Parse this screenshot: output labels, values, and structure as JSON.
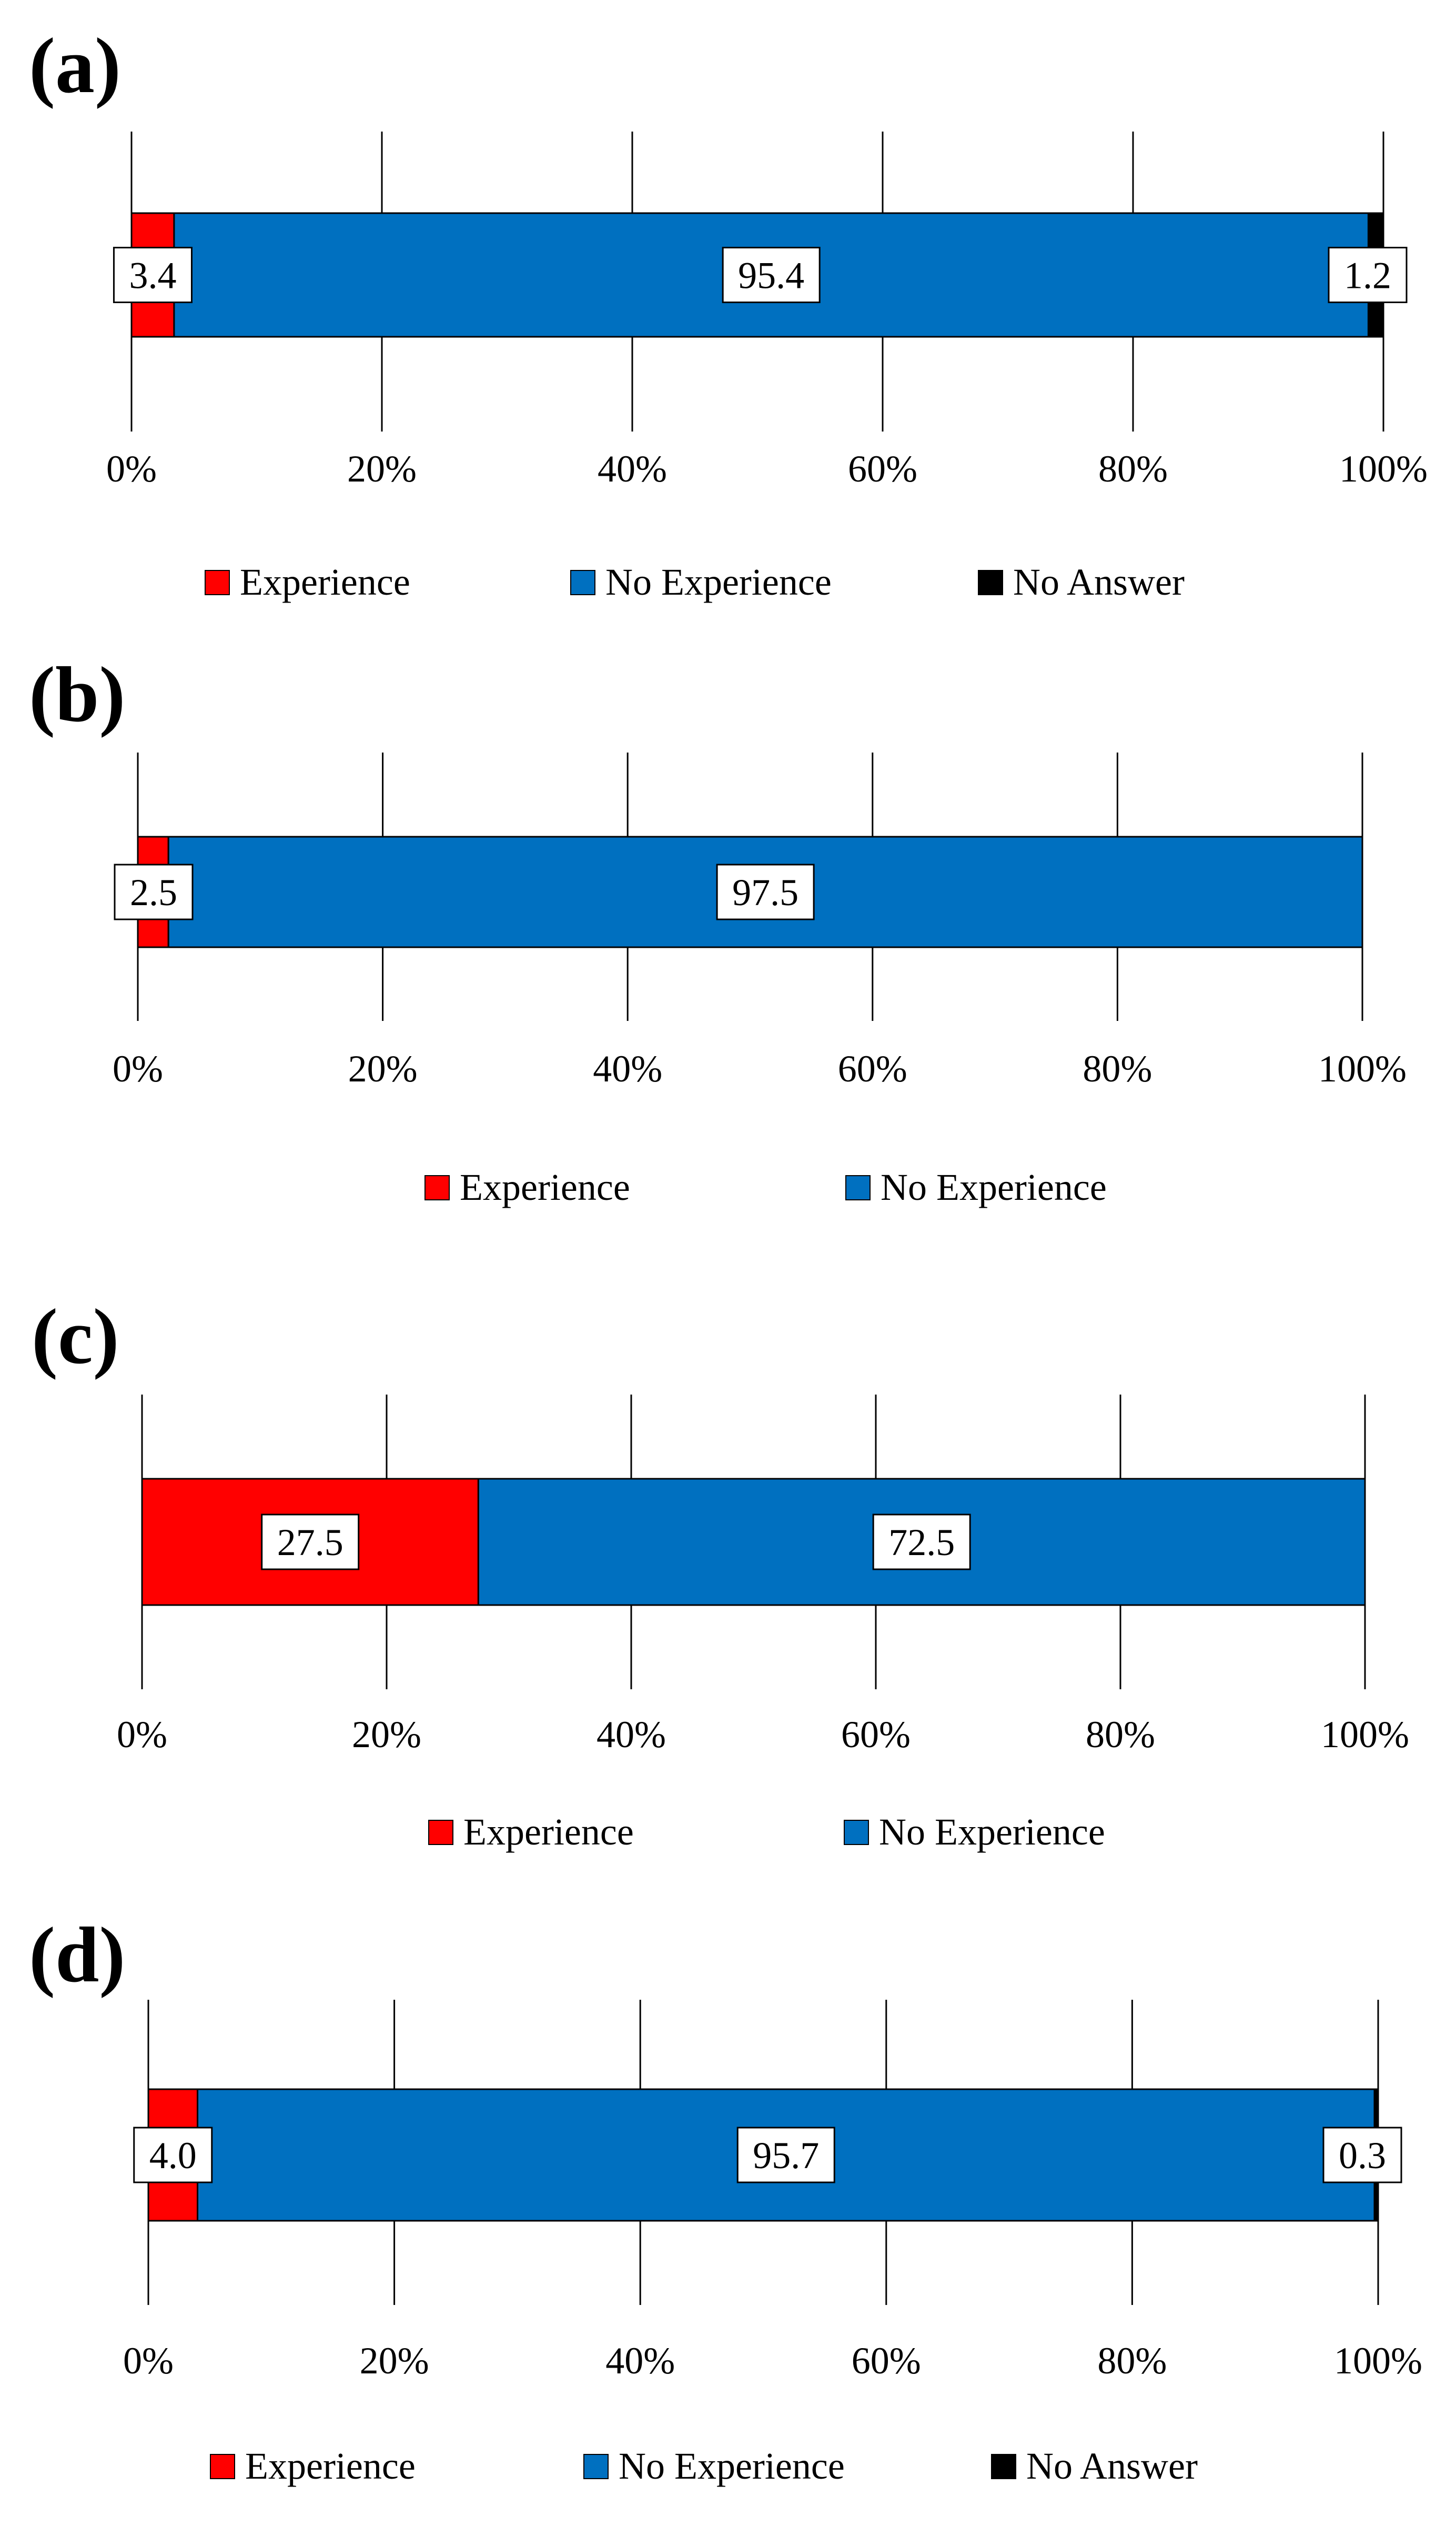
{
  "colors": {
    "Experience": "#ff0000",
    "No Experience": "#0070c0",
    "No Answer": "#000000",
    "gridline": "#000000",
    "label_box_fill": "#ffffff"
  },
  "chart_data": [
    {
      "type": "bar",
      "orientation": "horizontal",
      "stacked": "100%",
      "panel_label": "(a)",
      "series": [
        {
          "name": "Experience",
          "values": [
            3.4
          ]
        },
        {
          "name": "No Experience",
          "values": [
            95.4
          ]
        },
        {
          "name": "No Answer",
          "values": [
            1.2
          ]
        }
      ],
      "data_labels": [
        "3.4",
        "95.4",
        "1.2"
      ],
      "xlim": [
        0,
        100
      ],
      "x_ticks": [
        "0%",
        "20%",
        "40%",
        "60%",
        "80%",
        "100%"
      ],
      "grid": "vertical",
      "legend": [
        "Experience",
        "No Experience",
        "No Answer"
      ],
      "legend_position": "bottom"
    },
    {
      "type": "bar",
      "orientation": "horizontal",
      "stacked": "100%",
      "panel_label": "(b)",
      "series": [
        {
          "name": "Experience",
          "values": [
            2.5
          ]
        },
        {
          "name": "No Experience",
          "values": [
            97.5
          ]
        }
      ],
      "data_labels": [
        "2.5",
        "97.5"
      ],
      "xlim": [
        0,
        100
      ],
      "x_ticks": [
        "0%",
        "20%",
        "40%",
        "60%",
        "80%",
        "100%"
      ],
      "grid": "vertical",
      "legend": [
        "Experience",
        "No Experience"
      ],
      "legend_position": "bottom"
    },
    {
      "type": "bar",
      "orientation": "horizontal",
      "stacked": "100%",
      "panel_label": "(c)",
      "series": [
        {
          "name": "Experience",
          "values": [
            27.5
          ]
        },
        {
          "name": "No Experience",
          "values": [
            72.5
          ]
        }
      ],
      "data_labels": [
        "27.5",
        "72.5"
      ],
      "xlim": [
        0,
        100
      ],
      "x_ticks": [
        "0%",
        "20%",
        "40%",
        "60%",
        "80%",
        "100%"
      ],
      "grid": "vertical",
      "legend": [
        "Experience",
        "No Experience"
      ],
      "legend_position": "bottom"
    },
    {
      "type": "bar",
      "orientation": "horizontal",
      "stacked": "100%",
      "panel_label": "(d)",
      "series": [
        {
          "name": "Experience",
          "values": [
            4.0
          ]
        },
        {
          "name": "No Experience",
          "values": [
            95.7
          ]
        },
        {
          "name": "No Answer",
          "values": [
            0.3
          ]
        }
      ],
      "data_labels": [
        "4.0",
        "95.7",
        "0.3"
      ],
      "xlim": [
        0,
        100
      ],
      "x_ticks": [
        "0%",
        "20%",
        "40%",
        "60%",
        "80%",
        "100%"
      ],
      "grid": "vertical",
      "legend": [
        "Experience",
        "No Experience",
        "No Answer"
      ],
      "legend_position": "bottom"
    }
  ]
}
